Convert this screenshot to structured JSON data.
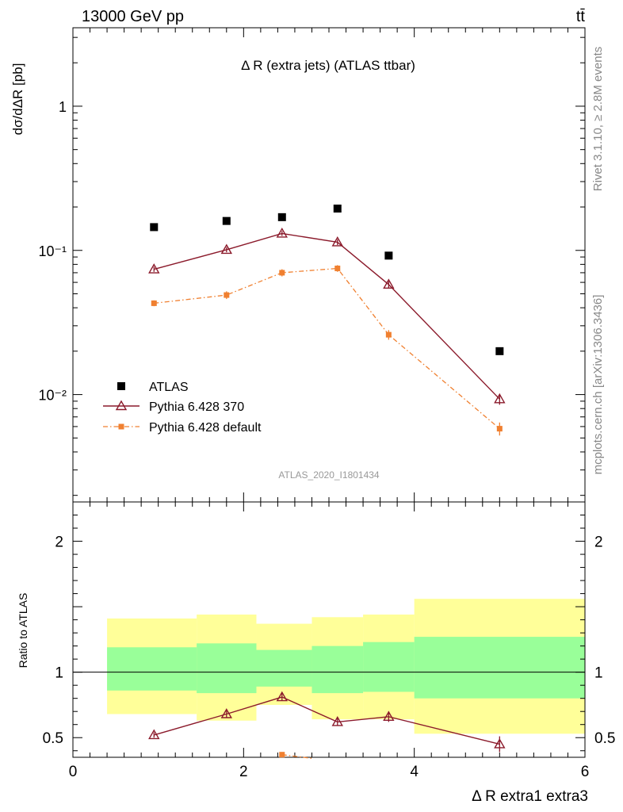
{
  "header": {
    "left": "13000 GeV pp",
    "right": "tt̄"
  },
  "side_labels": {
    "rivet": "Rivet 3.1.10, ≥ 2.8M events",
    "mcplots": "mcplots.cern.ch [arXiv:1306.3436]"
  },
  "chart_data": [
    {
      "type": "scatter",
      "title": "Δ R (extra jets) (ATLAS ttbar)",
      "analysis_label": "ATLAS_2020_I1801434",
      "ylabel": "dσ/dΔR [pb]",
      "yscale": "log",
      "ylim": [
        0.0018,
        3.5
      ],
      "xlim": [
        0,
        6
      ],
      "x": [
        0.95,
        1.8,
        2.45,
        3.1,
        3.7,
        5.0
      ],
      "series": [
        {
          "name": "ATLAS",
          "color": "#000000",
          "marker": "square",
          "values": [
            0.145,
            0.16,
            0.17,
            0.195,
            0.092,
            0.02
          ]
        },
        {
          "name": "Pythia 6.428 370",
          "color": "#8b1a2b",
          "marker": "open-triangle",
          "values": [
            0.074,
            0.101,
            0.131,
            0.114,
            0.058,
            0.0093
          ],
          "errors": [
            0.003,
            0.004,
            0.005,
            0.005,
            0.003,
            0.0008
          ]
        },
        {
          "name": "Pythia 6.428 default",
          "color": "#f08030",
          "marker": "square-small",
          "values": [
            0.043,
            0.049,
            0.07,
            0.075,
            0.026,
            0.0058
          ],
          "errors": [
            0.002,
            0.003,
            0.004,
            0.004,
            0.002,
            0.0006
          ]
        }
      ],
      "y_tick_labels": [
        "10⁻²",
        "10⁻¹",
        "1"
      ],
      "legend": "bottom-left"
    },
    {
      "type": "scatter",
      "ylabel": "Ratio to ATLAS",
      "xlabel": "Δ R extra1 extra3",
      "ylim": [
        0.35,
        2.3
      ],
      "xlim": [
        0,
        6
      ],
      "x_ticks": [
        "0",
        "2",
        "4",
        "6"
      ],
      "y_ticks": [
        "0.5",
        "1",
        "2"
      ],
      "bins": [
        [
          0.4,
          1.45
        ],
        [
          1.45,
          2.15
        ],
        [
          2.15,
          2.8
        ],
        [
          2.8,
          3.4
        ],
        [
          3.4,
          4.0
        ],
        [
          4.0,
          6.0
        ]
      ],
      "band_yellow": [
        [
          0.68,
          1.41
        ],
        [
          0.63,
          1.44
        ],
        [
          0.75,
          1.37
        ],
        [
          0.64,
          1.42
        ],
        [
          0.64,
          1.44
        ],
        [
          0.53,
          1.56
        ]
      ],
      "band_green": [
        [
          0.86,
          1.19
        ],
        [
          0.84,
          1.22
        ],
        [
          0.89,
          1.17
        ],
        [
          0.84,
          1.2
        ],
        [
          0.85,
          1.23
        ],
        [
          0.8,
          1.27
        ]
      ],
      "series": [
        {
          "name": "Pythia 6.428 370",
          "color": "#8b1a2b",
          "x": [
            0.95,
            1.8,
            2.45,
            3.1,
            3.7,
            5.0
          ],
          "values": [
            0.52,
            0.68,
            0.81,
            0.62,
            0.66,
            0.45
          ],
          "errors": [
            0.02,
            0.03,
            0.03,
            0.03,
            0.04,
            0.06
          ]
        },
        {
          "name": "Pythia 6.428 default",
          "color": "#f08030",
          "x": [
            2.45
          ],
          "values": [
            0.37
          ],
          "errors": [
            0.02
          ]
        }
      ]
    }
  ]
}
